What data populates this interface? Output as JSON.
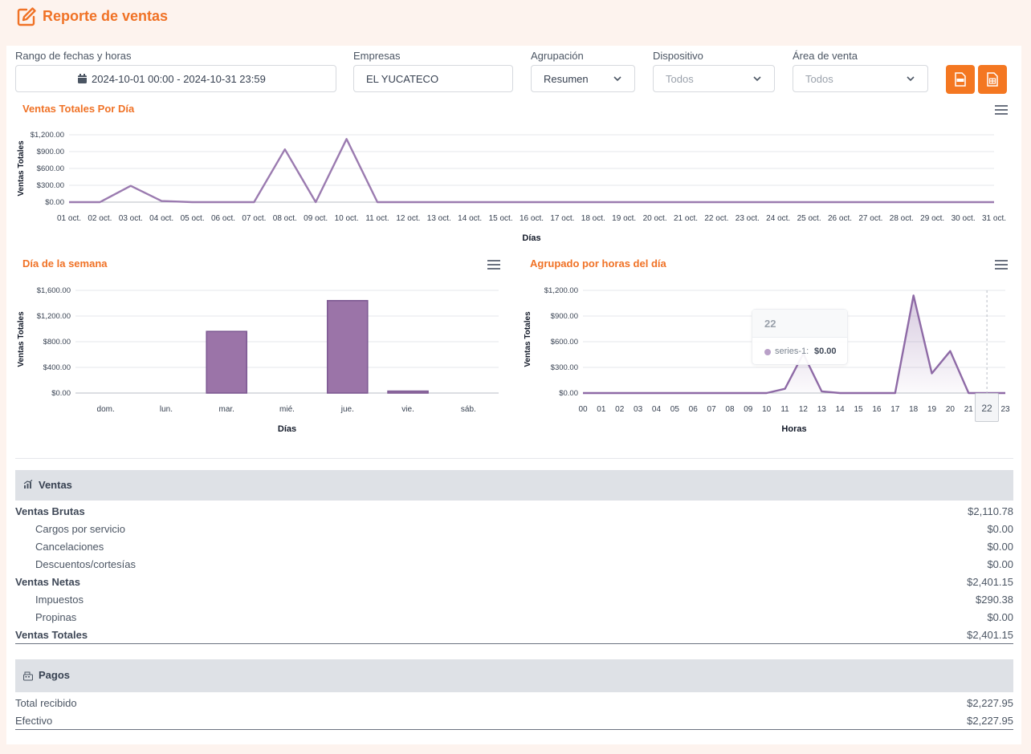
{
  "header": {
    "title": "Reporte de ventas",
    "icon": "edit-note-icon",
    "accent": "#f07226"
  },
  "filters": {
    "date_range": {
      "label": "Rango de fechas y horas",
      "value": "2024-10-01 00:00 - 2024-10-31 23:59",
      "icon": "calendar-icon"
    },
    "company": {
      "label": "Empresas",
      "value": "EL YUCATECO"
    },
    "grouping": {
      "label": "Agrupación",
      "value": "Resumen"
    },
    "device": {
      "label": "Dispositivo",
      "placeholder": "Todos"
    },
    "sales_area": {
      "label": "Área de venta",
      "placeholder": "Todos"
    },
    "export_pdf": {
      "icon": "pdf-file-icon",
      "color": "#f47721"
    },
    "export_excel": {
      "icon": "excel-file-icon",
      "color": "#f47721"
    }
  },
  "charts": {
    "daily": {
      "title": "Ventas Totales Por Día"
    },
    "weekday": {
      "title": "Día de la semana"
    },
    "hourly": {
      "title": "Agrupado por horas del día",
      "tooltip": {
        "title": "22",
        "series": "series-1:",
        "value": "$0.00"
      },
      "crosshair_label": "22"
    }
  },
  "chart_data": [
    {
      "type": "line",
      "title": "Ventas Totales Por Día",
      "xlabel": "Días",
      "ylabel": "Ventas Totales",
      "categories": [
        "01 oct.",
        "02 oct.",
        "03 oct.",
        "04 oct.",
        "05 oct.",
        "06 oct.",
        "07 oct.",
        "08 oct.",
        "09 oct.",
        "10 oct.",
        "11 oct.",
        "12 oct.",
        "13 oct.",
        "14 oct.",
        "15 oct.",
        "16 oct.",
        "17 oct.",
        "18 oct.",
        "19 oct.",
        "20 oct.",
        "21 oct.",
        "22 oct.",
        "23 oct.",
        "24 oct.",
        "25 oct.",
        "26 oct.",
        "27 oct.",
        "28 oct.",
        "29 oct.",
        "30 oct.",
        "31 oct."
      ],
      "values": [
        0,
        0,
        290,
        20,
        0,
        0,
        0,
        940,
        0,
        1125,
        0,
        0,
        0,
        0,
        0,
        0,
        0,
        0,
        0,
        0,
        0,
        0,
        0,
        0,
        0,
        0,
        0,
        0,
        0,
        0,
        0
      ],
      "yticks": [
        "$0.00",
        "$300.00",
        "$600.00",
        "$900.00",
        "$1,200.00"
      ],
      "ylim": [
        0,
        1200
      ],
      "color": "#9b7bb0",
      "grid": true
    },
    {
      "type": "bar",
      "title": "Día de la semana",
      "xlabel": "Días",
      "ylabel": "Ventas Totales",
      "categories": [
        "dom.",
        "lun.",
        "mar.",
        "mié.",
        "jue.",
        "vie.",
        "sáb."
      ],
      "values": [
        0,
        0,
        960,
        0,
        1440,
        30,
        0
      ],
      "yticks": [
        "$0.00",
        "$400.00",
        "$800.00",
        "$1,200.00",
        "$1,600.00"
      ],
      "ylim": [
        0,
        1600
      ],
      "color": "#9b74a8",
      "grid": true
    },
    {
      "type": "area",
      "title": "Agrupado por horas del día",
      "xlabel": "Horas",
      "ylabel": "Ventas Totales",
      "categories": [
        "00",
        "01",
        "02",
        "03",
        "04",
        "05",
        "06",
        "07",
        "08",
        "09",
        "10",
        "11",
        "12",
        "13",
        "14",
        "15",
        "16",
        "17",
        "18",
        "19",
        "20",
        "21",
        "22",
        "23"
      ],
      "values": [
        0,
        0,
        0,
        0,
        0,
        0,
        0,
        0,
        0,
        0,
        0,
        50,
        460,
        20,
        0,
        0,
        0,
        0,
        1140,
        230,
        490,
        0,
        0,
        0
      ],
      "yticks": [
        "$0.00",
        "$300.00",
        "$600.00",
        "$900.00",
        "$1,200.00"
      ],
      "ylim": [
        0,
        1200
      ],
      "color": "#8e6aa6",
      "grid": true
    }
  ],
  "ventas": {
    "title": "Ventas",
    "icon": "sales-chart-icon",
    "rows": [
      {
        "label": "Ventas Brutas",
        "value": "$2,110.78"
      },
      {
        "label": "Cargos por servicio",
        "value": "$0.00"
      },
      {
        "label": "Cancelaciones",
        "value": "$0.00"
      },
      {
        "label": "Descuentos/cortesías",
        "value": "$0.00"
      },
      {
        "label": "Ventas Netas",
        "value": "$2,401.15"
      },
      {
        "label": "Impuestos",
        "value": "$290.38"
      },
      {
        "label": "Propinas",
        "value": "$0.00"
      },
      {
        "label": "Ventas Totales",
        "value": "$2,401.15"
      }
    ]
  },
  "pagos": {
    "title": "Pagos",
    "icon": "cash-register-icon",
    "rows": [
      {
        "label": "Total recibido",
        "value": "$2,227.95"
      },
      {
        "label": "Efectivo",
        "value": "$2,227.95"
      }
    ]
  }
}
